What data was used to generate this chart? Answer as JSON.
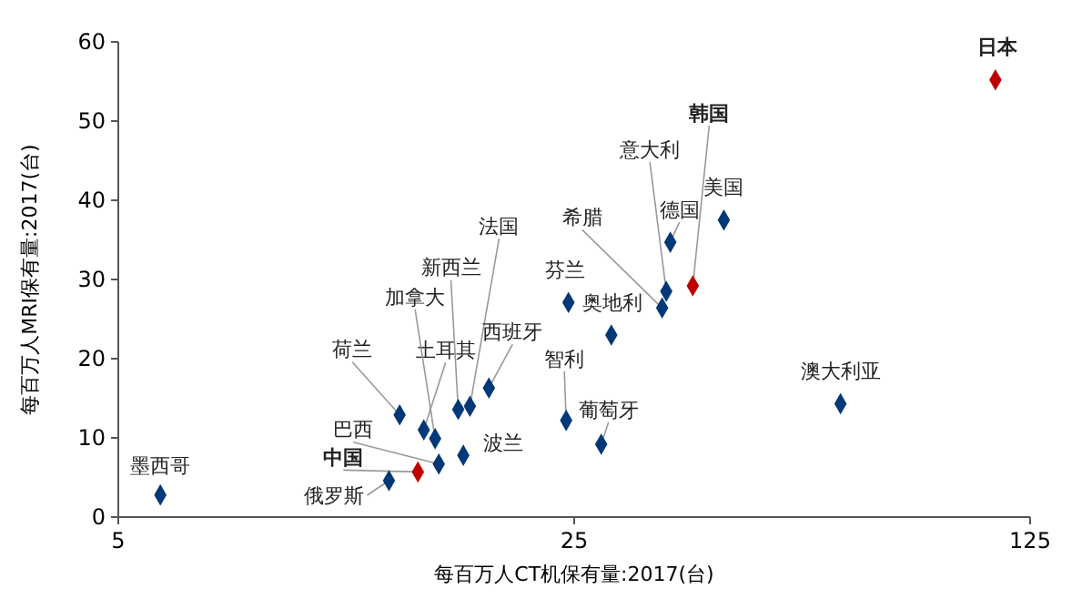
{
  "chart_data": {
    "type": "scatter",
    "xlabel": "每百万人CT机保有量:2017(台)",
    "ylabel": "每百万人MRI保有量:2017(台)",
    "log": "x",
    "xlim": [
      5,
      125
    ],
    "xticks": [
      5,
      25,
      125
    ],
    "ylim": [
      0,
      60
    ],
    "yticks": [
      0,
      10,
      20,
      30,
      40,
      50,
      60
    ],
    "marker": "diamond",
    "grid": false,
    "series": [
      {
        "x": [
          5.8,
          13.0,
          14.4,
          15.5,
          13.5,
          14.7,
          15.3,
          16.9,
          16.6,
          17.3,
          18.5,
          24.3,
          24.5,
          27.5,
          28.5,
          34.1,
          34.6,
          35.1,
          38.0,
          42.4,
          64,
          110.6
        ],
        "values": [
          2.8,
          4.6,
          5.7,
          6.7,
          12.9,
          11.0,
          9.9,
          7.8,
          13.6,
          14.0,
          16.3,
          12.2,
          27.1,
          9.2,
          23.0,
          26.4,
          28.5,
          34.7,
          29.2,
          37.5,
          14.3,
          55.2
        ],
        "colors": [
          "#003878",
          "#003878",
          "#c00000",
          "#003878",
          "#003878",
          "#003878",
          "#003878",
          "#003878",
          "#003878",
          "#003878",
          "#003878",
          "#003878",
          "#003878",
          "#003878",
          "#003878",
          "#003878",
          "#003878",
          "#003878",
          "#c00000",
          "#003878",
          "#003878",
          "#c00000"
        ]
      }
    ],
    "annotations": [
      {
        "text": "墨西哥",
        "x": 5.8,
        "y": 2.8
      },
      {
        "text": "俄罗斯",
        "x": 13.0,
        "y": 4.6
      },
      {
        "text": "中国",
        "x": 14.4,
        "y": 5.7
      },
      {
        "text": "巴西",
        "x": 15.5,
        "y": 6.7
      },
      {
        "text": "荷兰",
        "x": 13.5,
        "y": 12.9
      },
      {
        "text": "土耳其",
        "x": 14.7,
        "y": 11.0
      },
      {
        "text": "加拿大",
        "x": 15.3,
        "y": 9.9
      },
      {
        "text": "波兰",
        "x": 16.9,
        "y": 7.8
      },
      {
        "text": "新西兰",
        "x": 16.6,
        "y": 13.6
      },
      {
        "text": "法国",
        "x": 17.3,
        "y": 14.0
      },
      {
        "text": "西班牙",
        "x": 18.5,
        "y": 16.3
      },
      {
        "text": "智利",
        "x": 24.3,
        "y": 12.2
      },
      {
        "text": "芬兰",
        "x": 24.5,
        "y": 27.1
      },
      {
        "text": "葡萄牙",
        "x": 27.5,
        "y": 9.2
      },
      {
        "text": "奥地利",
        "x": 28.5,
        "y": 23.0
      },
      {
        "text": "希腊",
        "x": 34.1,
        "y": 26.4
      },
      {
        "text": "意大利",
        "x": 34.6,
        "y": 28.5
      },
      {
        "text": "德国",
        "x": 35.1,
        "y": 34.7
      },
      {
        "text": "韩国",
        "x": 38.0,
        "y": 29.2
      },
      {
        "text": "美国",
        "x": 42.4,
        "y": 37.5
      },
      {
        "text": "澳大利亚",
        "x": 64,
        "y": 14.3
      },
      {
        "text": "日本",
        "x": 110.6,
        "y": 55.2
      }
    ]
  }
}
